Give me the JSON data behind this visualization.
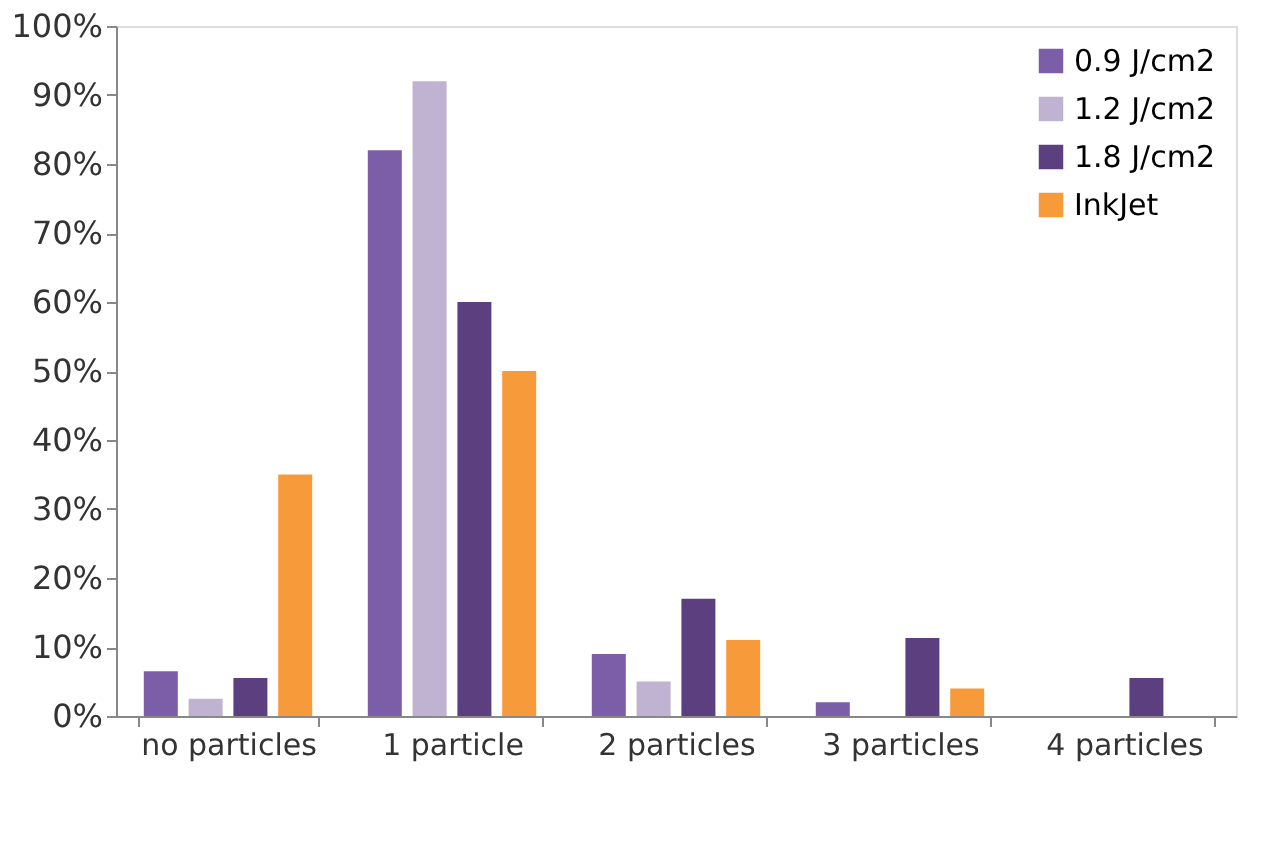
{
  "chart_data": {
    "type": "bar",
    "categories": [
      "no particles",
      "1 particle",
      "2 particles",
      "3 particles",
      "4 particles"
    ],
    "series": [
      {
        "name": "0.9 J/cm2",
        "color": "#7b5ea7",
        "values": [
          6.5,
          82,
          9,
          2,
          0
        ]
      },
      {
        "name": "1.2 J/cm2",
        "color": "#bfb3d1",
        "values": [
          2.5,
          92,
          5,
          0,
          0
        ]
      },
      {
        "name": "1.8 J/cm2",
        "color": "#5b3f7f",
        "values": [
          5.5,
          60,
          17,
          11.3,
          5.5
        ]
      },
      {
        "name": "InkJet",
        "color": "#f79a3a",
        "values": [
          35,
          50,
          11,
          4,
          0
        ]
      }
    ],
    "ylim": [
      0,
      100
    ],
    "yticks": [
      {
        "value": 0,
        "label": "0%"
      },
      {
        "value": 10,
        "label": "10%"
      },
      {
        "value": 20,
        "label": "20%"
      },
      {
        "value": 30,
        "label": "30%"
      },
      {
        "value": 40,
        "label": "40%"
      },
      {
        "value": 50,
        "label": "50%"
      },
      {
        "value": 60,
        "label": "60%"
      },
      {
        "value": 70,
        "label": "70%"
      },
      {
        "value": 80,
        "label": "80%"
      },
      {
        "value": 90,
        "label": "90%"
      },
      {
        "value": 100,
        "label": "100%"
      }
    ],
    "grid": false,
    "legend": "top right"
  }
}
